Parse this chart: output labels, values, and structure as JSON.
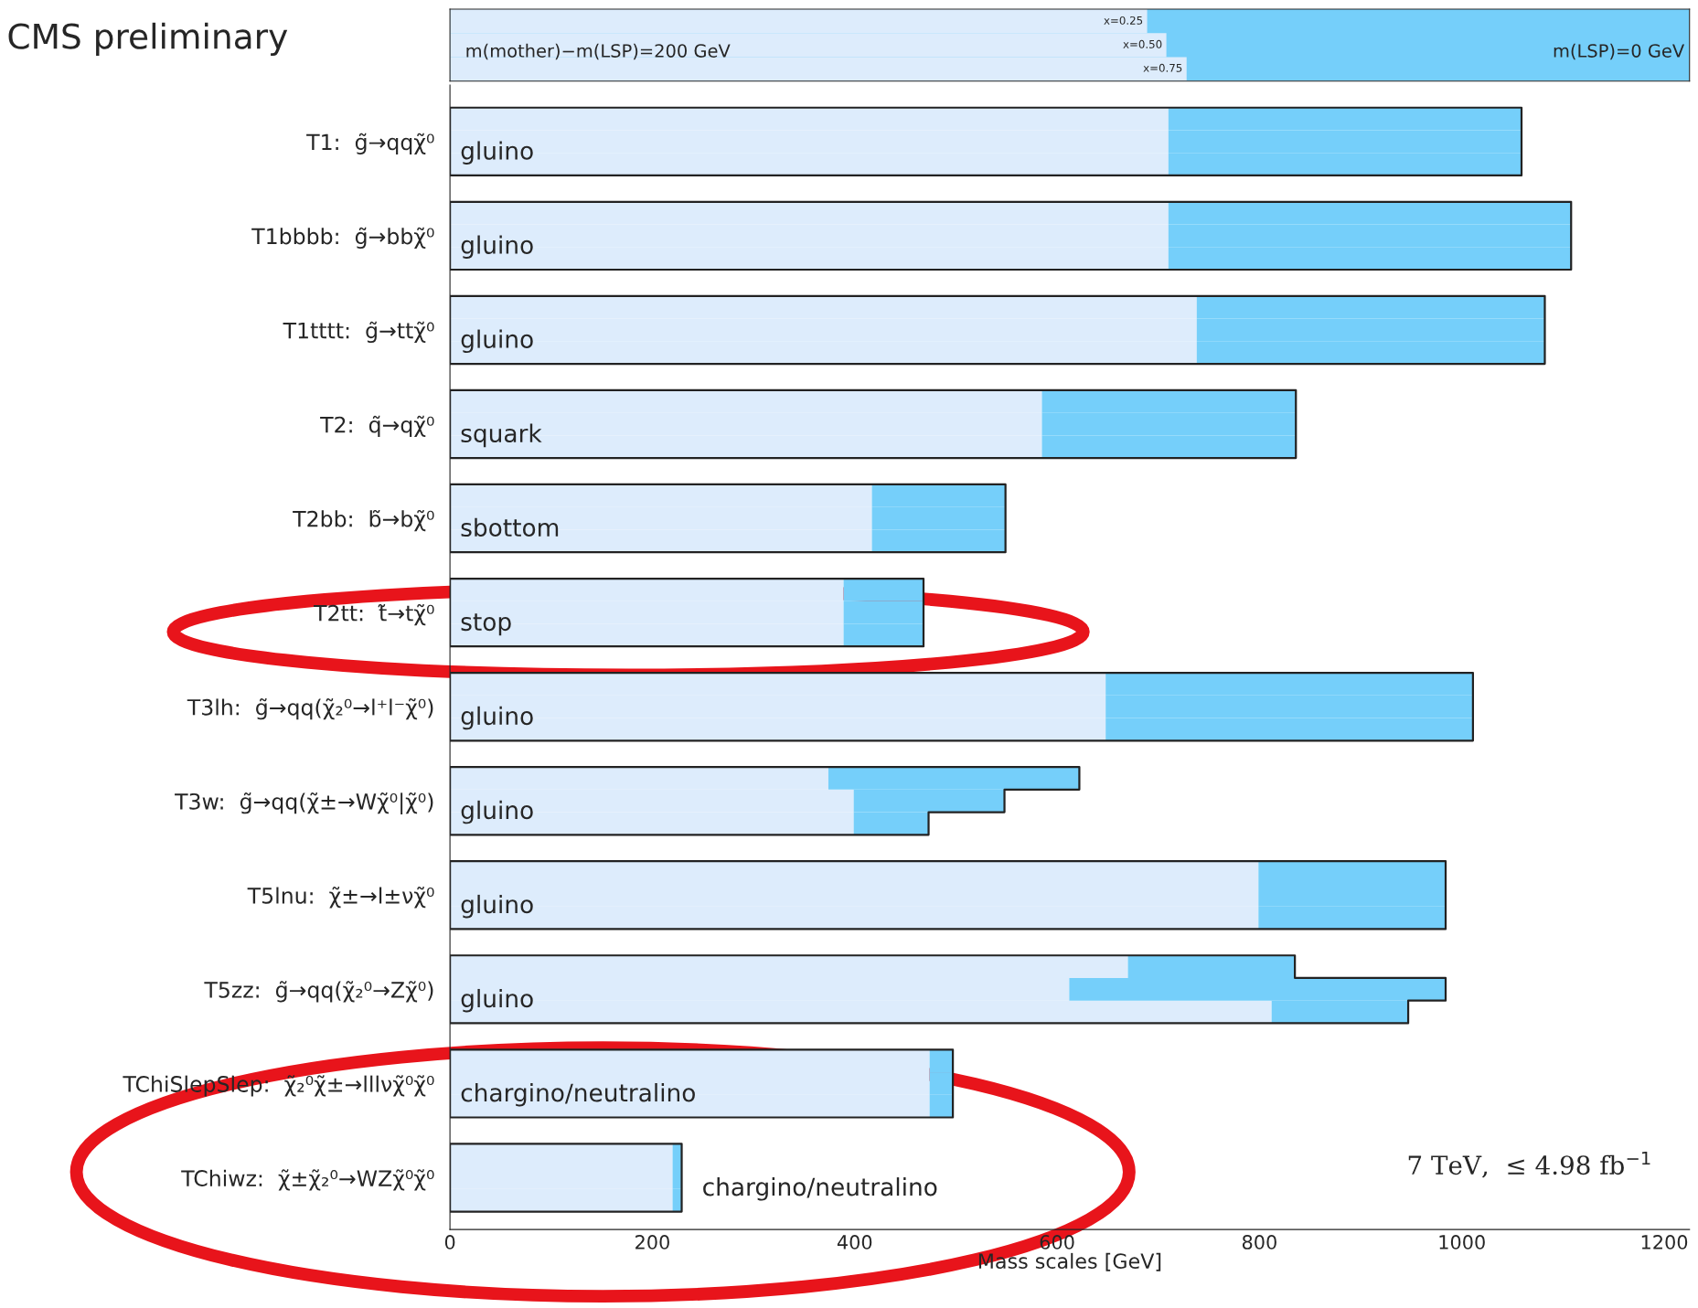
{
  "chart_data": {
    "type": "bar",
    "orientation": "horizontal",
    "stacked": true,
    "categories": [
      null,
      "T1:  g̃→qqχ̃⁰",
      null,
      null,
      "T1bbbb:  g̃→bbχ̃⁰",
      null,
      null,
      "T1tttt:  g̃→ttχ̃⁰",
      null,
      null,
      "T2:  q̃→qχ̃⁰",
      null,
      null,
      "T2bb:  b̃→bχ̃⁰",
      null,
      null,
      "T2tt:  t̃→tχ̃⁰",
      null,
      null,
      "T3lh:  g̃→qq(χ̃₂⁰→l⁺l⁻χ̃⁰)",
      null,
      null,
      "T3w:  g̃→qq(χ̃±→Wχ̃⁰|χ̃⁰)",
      null,
      null,
      "T5lnu:  χ̃±→l±νχ̃⁰",
      null,
      null,
      "T5zz:  g̃→qq(χ̃₂⁰→Zχ̃⁰)",
      null,
      null,
      "TChiSlepSlep:  χ̃₂⁰χ̃±→lllνχ̃⁰χ̃⁰",
      null,
      null,
      "TChiwz:  χ̃±χ̃₂⁰→WZχ̃⁰χ̃⁰",
      null
    ],
    "series": [
      {
        "color": "#ddecfc",
        "values": [
          710,
          710,
          710,
          710,
          710,
          710,
          738,
          738,
          738,
          585,
          585,
          585,
          417,
          417,
          417,
          389,
          389,
          389,
          648,
          648,
          648,
          374,
          399,
          399,
          799,
          799,
          799,
          670,
          612,
          812,
          474,
          474,
          474,
          220,
          220,
          220
        ]
      },
      {
        "color": "#75cffa",
        "values": [
          349,
          349,
          349,
          398,
          398,
          398,
          344,
          344,
          344,
          251,
          251,
          251,
          132,
          132,
          132,
          79,
          79,
          79,
          363,
          363,
          363,
          248,
          149,
          74,
          185,
          185,
          185,
          165,
          372,
          135,
          23,
          23,
          23,
          9,
          9,
          9
        ]
      }
    ],
    "xlabel": "Mass scales [GeV]",
    "xlim": [
      0,
      1225
    ],
    "xticks": [
      0,
      200,
      400,
      600,
      800,
      1000,
      1200
    ],
    "grid": false,
    "annotations": [
      "CMS preliminary",
      "7 TeV,  ≤ 4.98 fb$^{−1}$",
      "m(mother)−m(LSP)=200 GeV",
      "m(LSP)=0 GeV",
      "x=0.25",
      "x=0.50",
      "x=0.75",
      "gluino",
      "gluino",
      "gluino",
      "squark",
      "sbottom",
      "stop",
      "gluino",
      "gluino",
      "gluino",
      "gluino",
      "chargino/neutralino",
      "chargino/neutralino"
    ]
  }
}
